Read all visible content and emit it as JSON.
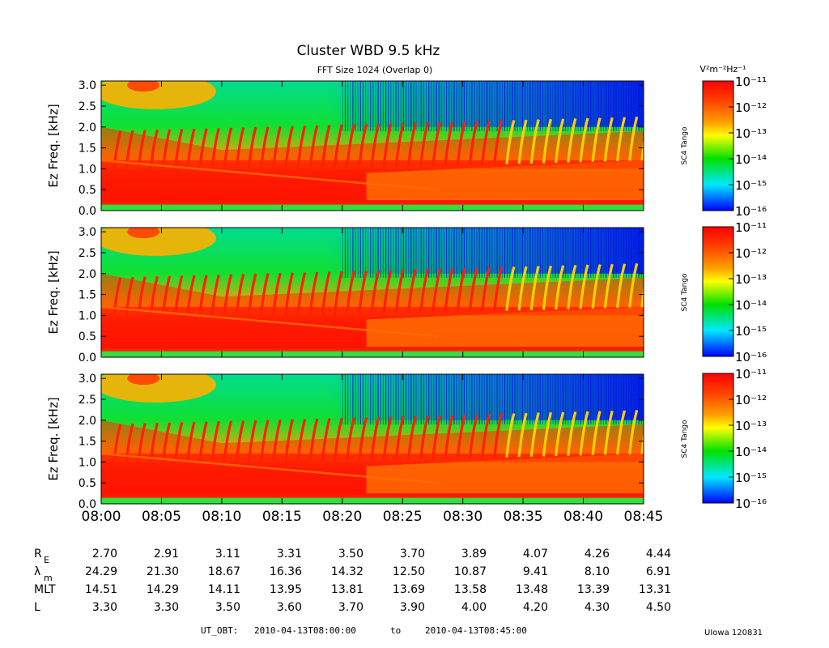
{
  "title": "Cluster WBD 9.5 kHz",
  "subtitle": "FFT Size 1024 (Overlap      0)",
  "units": "V²m⁻²Hz⁻¹",
  "chart_data": {
    "type": "heatmap",
    "panels": [
      {
        "ylabel": "Ez Freq. [kHz]",
        "side_label": "SC4 Tango"
      },
      {
        "ylabel": "Ez Freq. [kHz]",
        "side_label": "SC4 Tango"
      },
      {
        "ylabel": "Ez Freq. [kHz]",
        "side_label": "SC4 Tango"
      }
    ],
    "ylim": [
      0,
      3.1
    ],
    "yticks": [
      "0.0",
      "0.5",
      "1.0",
      "1.5",
      "2.0",
      "2.5",
      "3.0"
    ],
    "ytick_values": [
      0,
      0.5,
      1.0,
      1.5,
      2.0,
      2.5,
      3.0
    ],
    "xlim_minutes": [
      0,
      45
    ],
    "xticks": [
      "08:00",
      "08:05",
      "08:10",
      "08:15",
      "08:20",
      "08:25",
      "08:30",
      "08:35",
      "08:40",
      "08:45"
    ],
    "colorbar": {
      "scale": "log",
      "tick_labels": [
        "10⁻¹¹",
        "10⁻¹²",
        "10⁻¹³",
        "10⁻¹⁴",
        "10⁻¹⁵",
        "10⁻¹⁶"
      ],
      "colors": [
        "#ff0000",
        "#ff8c00",
        "#ffff00",
        "#00e000",
        "#00e0ff",
        "#0000ff"
      ]
    },
    "features": {
      "lower_band_kHz": [
        0.2,
        1.2
      ],
      "chorus_upper_edge_kHz": [
        1.5,
        2.0
      ],
      "hiss_line_start_kHz": 1.2,
      "hiss_line_end_kHz": 0.5
    }
  },
  "ephemeris": {
    "rows": [
      {
        "label": "R",
        "sub": "E",
        "values": [
          "2.70",
          "2.91",
          "3.11",
          "3.31",
          "3.50",
          "3.70",
          "3.89",
          "4.07",
          "4.26",
          "4.44"
        ]
      },
      {
        "label": "λ",
        "sub": "m",
        "values": [
          "24.29",
          "21.30",
          "18.67",
          "16.36",
          "14.32",
          "12.50",
          "10.87",
          "9.41",
          "8.10",
          "6.91"
        ]
      },
      {
        "label": "MLT",
        "sub": "",
        "values": [
          "14.51",
          "14.29",
          "14.11",
          "13.95",
          "13.81",
          "13.69",
          "13.58",
          "13.48",
          "13.39",
          "13.31"
        ]
      },
      {
        "label": "L",
        "sub": "",
        "values": [
          "3.30",
          "3.30",
          "3.50",
          "3.60",
          "3.70",
          "3.90",
          "4.00",
          "4.20",
          "4.30",
          "4.50"
        ]
      }
    ]
  },
  "footer": {
    "ut_label": "UT_OBT:",
    "start": "2010-04-13T08:00:00",
    "to": "to",
    "end": "2010-04-13T08:45:00",
    "credit": "UIowa 120831"
  }
}
